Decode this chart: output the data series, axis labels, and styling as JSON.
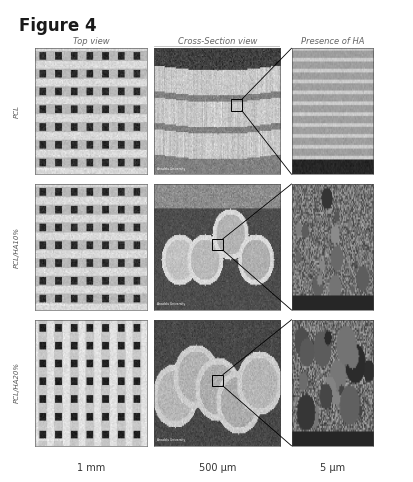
{
  "title": "Figure 4",
  "title_color": "#1a1a1a",
  "title_fontsize": 12,
  "col_headers": [
    "Top view",
    "Cross-Section view",
    "Presence of HA"
  ],
  "row_labels": [
    "PCL",
    "PCL/HA10%",
    "PCL/HA20%"
  ],
  "scale_labels": [
    "1 mm",
    "500 μm",
    "5 μm"
  ],
  "header_fontsize": 6,
  "row_label_fontsize": 5,
  "scale_fontsize": 7,
  "bg_color": "#ffffff",
  "header_color": "#666666",
  "row_label_color": "#555555",
  "figure_width": 4.13,
  "figure_height": 4.82,
  "dpi": 100
}
